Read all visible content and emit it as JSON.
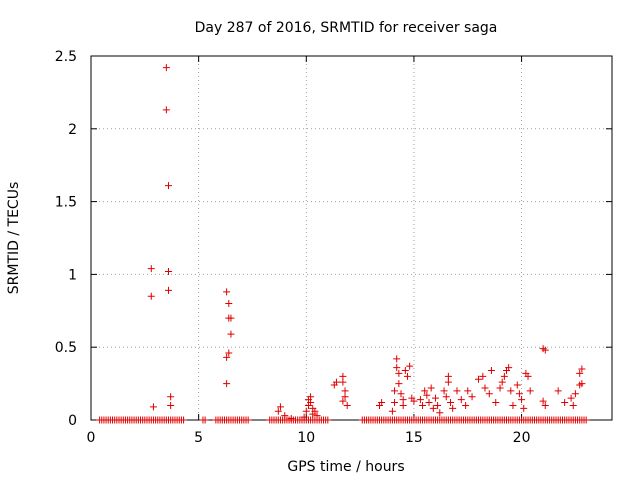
{
  "chart_data": {
    "type": "scatter",
    "title": "Day 287 of 2016, SRMTID for receiver saga",
    "xlabel": "GPS time / hours",
    "ylabel": "SRMTID / TECUs",
    "xlim": [
      0,
      24.2
    ],
    "ylim": [
      0,
      2.5
    ],
    "xticks": [
      0,
      5,
      10,
      15,
      20
    ],
    "yticks": [
      0,
      0.5,
      1,
      1.5,
      2,
      2.5
    ],
    "xtick_labels": [
      "0",
      "5",
      "10",
      "15",
      "20"
    ],
    "ytick_labels": [
      "0",
      "0.5",
      "1",
      "1.5",
      "2",
      "2.5"
    ],
    "grid": true,
    "marker": "+",
    "color": "#e00000",
    "series": [
      {
        "name": "SRMTID",
        "points": [
          [
            2.8,
            1.04
          ],
          [
            2.8,
            0.85
          ],
          [
            2.9,
            0.09
          ],
          [
            3.5,
            2.42
          ],
          [
            3.5,
            2.13
          ],
          [
            3.6,
            1.61
          ],
          [
            3.6,
            1.02
          ],
          [
            3.6,
            0.89
          ],
          [
            3.7,
            0.16
          ],
          [
            3.7,
            0.1
          ],
          [
            6.3,
            0.88
          ],
          [
            6.4,
            0.7
          ],
          [
            6.4,
            0.8
          ],
          [
            6.5,
            0.7
          ],
          [
            6.5,
            0.59
          ],
          [
            6.4,
            0.46
          ],
          [
            6.3,
            0.43
          ],
          [
            6.3,
            0.25
          ],
          [
            8.7,
            0.06
          ],
          [
            8.8,
            0.09
          ],
          [
            9.0,
            0.03
          ],
          [
            9.3,
            0.01
          ],
          [
            9.9,
            0.02
          ],
          [
            10.0,
            0.06
          ],
          [
            10.1,
            0.1
          ],
          [
            10.1,
            0.14
          ],
          [
            10.2,
            0.16
          ],
          [
            10.2,
            0.12
          ],
          [
            10.3,
            0.08
          ],
          [
            10.3,
            0.04
          ],
          [
            10.4,
            0.06
          ],
          [
            10.5,
            0.03
          ],
          [
            11.3,
            0.24
          ],
          [
            11.4,
            0.26
          ],
          [
            11.7,
            0.3
          ],
          [
            11.7,
            0.26
          ],
          [
            11.8,
            0.2
          ],
          [
            11.8,
            0.16
          ],
          [
            11.7,
            0.13
          ],
          [
            11.9,
            0.1
          ],
          [
            13.4,
            0.1
          ],
          [
            13.5,
            0.12
          ],
          [
            14.0,
            0.06
          ],
          [
            14.1,
            0.12
          ],
          [
            14.1,
            0.2
          ],
          [
            14.2,
            0.42
          ],
          [
            14.2,
            0.36
          ],
          [
            14.3,
            0.32
          ],
          [
            14.3,
            0.25
          ],
          [
            14.4,
            0.18
          ],
          [
            14.5,
            0.14
          ],
          [
            14.5,
            0.1
          ],
          [
            14.6,
            0.34
          ],
          [
            14.7,
            0.3
          ],
          [
            14.8,
            0.37
          ],
          [
            14.9,
            0.15
          ],
          [
            15.0,
            0.13
          ],
          [
            15.3,
            0.14
          ],
          [
            15.4,
            0.1
          ],
          [
            15.5,
            0.2
          ],
          [
            15.6,
            0.17
          ],
          [
            15.7,
            0.12
          ],
          [
            15.8,
            0.22
          ],
          [
            15.9,
            0.08
          ],
          [
            16.0,
            0.15
          ],
          [
            16.1,
            0.1
          ],
          [
            16.2,
            0.05
          ],
          [
            16.4,
            0.2
          ],
          [
            16.5,
            0.16
          ],
          [
            16.6,
            0.26
          ],
          [
            16.6,
            0.3
          ],
          [
            16.7,
            0.12
          ],
          [
            16.8,
            0.08
          ],
          [
            17.0,
            0.2
          ],
          [
            17.2,
            0.14
          ],
          [
            17.4,
            0.1
          ],
          [
            17.5,
            0.2
          ],
          [
            17.7,
            0.16
          ],
          [
            18.0,
            0.28
          ],
          [
            18.2,
            0.3
          ],
          [
            18.3,
            0.22
          ],
          [
            18.5,
            0.18
          ],
          [
            18.6,
            0.34
          ],
          [
            18.8,
            0.12
          ],
          [
            19.0,
            0.22
          ],
          [
            19.1,
            0.26
          ],
          [
            19.2,
            0.3
          ],
          [
            19.3,
            0.34
          ],
          [
            19.4,
            0.36
          ],
          [
            19.5,
            0.2
          ],
          [
            19.6,
            0.1
          ],
          [
            19.8,
            0.24
          ],
          [
            19.9,
            0.18
          ],
          [
            20.0,
            0.14
          ],
          [
            20.1,
            0.08
          ],
          [
            20.2,
            0.32
          ],
          [
            20.3,
            0.3
          ],
          [
            20.4,
            0.2
          ],
          [
            21.0,
            0.49
          ],
          [
            21.1,
            0.48
          ],
          [
            21.0,
            0.13
          ],
          [
            21.1,
            0.1
          ],
          [
            21.7,
            0.2
          ],
          [
            22.0,
            0.12
          ],
          [
            22.3,
            0.15
          ],
          [
            22.4,
            0.1
          ],
          [
            22.5,
            0.18
          ],
          [
            22.7,
            0.24
          ],
          [
            22.7,
            0.32
          ],
          [
            22.8,
            0.35
          ],
          [
            22.8,
            0.25
          ]
        ],
        "baseline_zero_ranges": [
          [
            0.4,
            4.3
          ],
          [
            5.2,
            5.3
          ],
          [
            5.8,
            7.3
          ],
          [
            8.3,
            11.0
          ],
          [
            12.6,
            23.0
          ]
        ]
      }
    ]
  }
}
